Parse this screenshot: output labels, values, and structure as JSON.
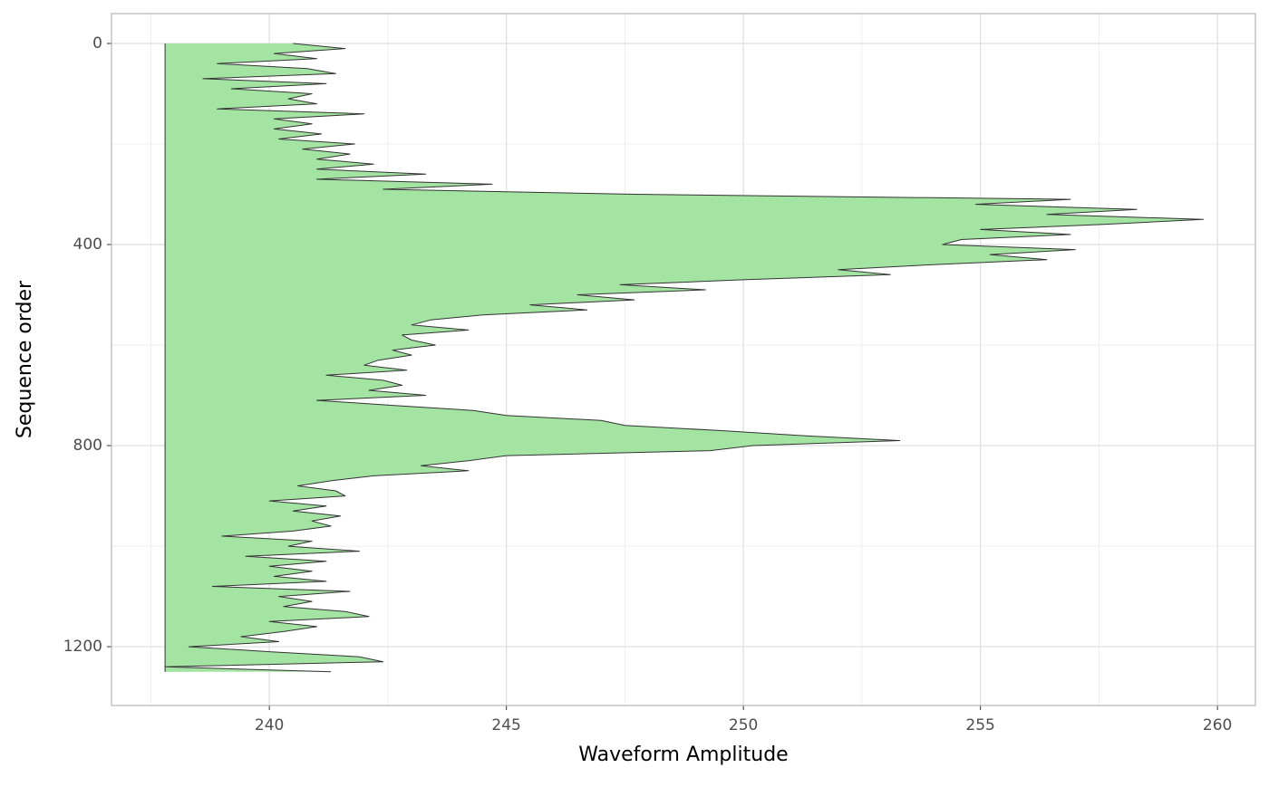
{
  "chart_data": {
    "type": "area_horizontal",
    "x_label": "Waveform Amplitude",
    "y_label": "Sequence order",
    "y": [
      0,
      10,
      20,
      30,
      40,
      50,
      60,
      70,
      80,
      90,
      100,
      110,
      120,
      130,
      140,
      150,
      160,
      170,
      180,
      190,
      200,
      210,
      220,
      230,
      240,
      250,
      260,
      270,
      280,
      290,
      300,
      310,
      320,
      330,
      340,
      350,
      360,
      370,
      380,
      390,
      400,
      410,
      420,
      430,
      440,
      450,
      460,
      470,
      480,
      490,
      500,
      510,
      520,
      530,
      540,
      550,
      560,
      570,
      580,
      590,
      600,
      610,
      620,
      630,
      640,
      650,
      660,
      670,
      680,
      690,
      700,
      710,
      720,
      730,
      740,
      750,
      760,
      770,
      780,
      790,
      800,
      810,
      820,
      830,
      840,
      850,
      860,
      870,
      880,
      890,
      900,
      910,
      920,
      930,
      940,
      950,
      960,
      970,
      980,
      990,
      1000,
      1010,
      1020,
      1030,
      1040,
      1050,
      1060,
      1070,
      1080,
      1090,
      1100,
      1110,
      1120,
      1130,
      1140,
      1150,
      1160,
      1170,
      1180,
      1190,
      1200,
      1210,
      1220,
      1230,
      1240,
      1250
    ],
    "values": [
      240.5,
      241.6,
      240.1,
      241.0,
      238.9,
      240.8,
      241.4,
      238.6,
      241.2,
      239.2,
      240.9,
      240.4,
      241.0,
      238.9,
      242.0,
      240.1,
      240.9,
      240.1,
      241.1,
      240.2,
      241.8,
      240.7,
      241.7,
      241.0,
      242.2,
      241.0,
      243.3,
      241.0,
      244.7,
      242.4,
      247.7,
      256.9,
      254.9,
      258.3,
      256.4,
      259.7,
      257.6,
      255.0,
      256.9,
      254.6,
      254.2,
      257.0,
      255.2,
      256.4,
      254.0,
      252.0,
      253.1,
      250.0,
      247.4,
      249.2,
      246.5,
      247.7,
      245.5,
      246.7,
      244.5,
      243.4,
      243.0,
      244.2,
      242.8,
      243.0,
      243.5,
      242.6,
      243.0,
      242.3,
      242.0,
      242.9,
      241.2,
      242.4,
      242.8,
      242.1,
      243.3,
      241.0,
      242.6,
      244.3,
      245.0,
      247.0,
      247.5,
      249.5,
      251.2,
      253.3,
      250.2,
      249.3,
      245.0,
      244.2,
      243.2,
      244.2,
      242.2,
      241.3,
      240.6,
      241.4,
      241.6,
      240.0,
      241.2,
      240.5,
      241.5,
      240.9,
      241.3,
      240.5,
      239.0,
      240.9,
      240.4,
      241.9,
      239.5,
      241.2,
      240.0,
      240.9,
      240.1,
      241.2,
      238.8,
      241.7,
      240.2,
      240.9,
      240.3,
      241.6,
      242.1,
      240.0,
      241.0,
      240.3,
      239.4,
      240.2,
      238.3,
      240.0,
      241.9,
      242.4,
      237.8,
      241.3
    ],
    "fill_color": "#a3e4a3",
    "line_color": "#333333",
    "xlim": [
      236.67,
      260.8
    ],
    "xticks": [
      240,
      245,
      250,
      255,
      260
    ],
    "x_minor_ticks": [
      237.5,
      242.5,
      247.5,
      252.5,
      257.5
    ],
    "ylim": [
      -59.5,
      1317
    ],
    "yticks": [
      0,
      400,
      800,
      1200
    ],
    "y_minor_ticks": [
      200,
      600,
      1000
    ],
    "y_reversed": true,
    "grid": true
  }
}
